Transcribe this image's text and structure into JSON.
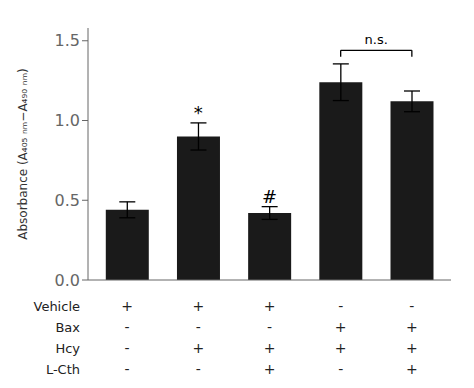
{
  "chart_data": {
    "type": "bar",
    "ylabel": "Absorbance (A₄₀₅ ₙₘ−A₄₉₀ ₙₘ)",
    "categories": [
      null,
      null,
      null,
      null,
      null
    ],
    "values": [
      0.44,
      0.9,
      0.42,
      1.24,
      1.12
    ],
    "errors": [
      0.05,
      0.085,
      0.04,
      0.115,
      0.065
    ],
    "color": "#1a1a1a",
    "ylim": [
      0,
      1.58
    ],
    "yticks": [
      {
        "value": 0,
        "label": "0.0"
      },
      0.5,
      {
        "value": 1,
        "label": "1.0"
      },
      1.5
    ],
    "tick_labels": "y",
    "grid": false,
    "annotations": [
      {
        "text": "*",
        "x": 1,
        "y": 1.0
      },
      {
        "text": "#",
        "x": 2,
        "y": 0.47
      }
    ],
    "brackets": [
      {
        "text": "n.s.",
        "x1": 3,
        "x2": 4,
        "y": 1.44,
        "drop": 0.04,
        "text_y": 1.47
      }
    ],
    "table": {
      "row_labels": [
        "Vehicle",
        "Bax",
        "Hcy",
        "L-Cth"
      ],
      "cells": [
        [
          "+",
          "+",
          "+",
          "-",
          "-"
        ],
        [
          "-",
          "-",
          "-",
          "+",
          "+"
        ],
        [
          "-",
          "+",
          "+",
          "+",
          "+"
        ],
        [
          "-",
          "-",
          "+",
          "-",
          "+"
        ]
      ]
    }
  }
}
